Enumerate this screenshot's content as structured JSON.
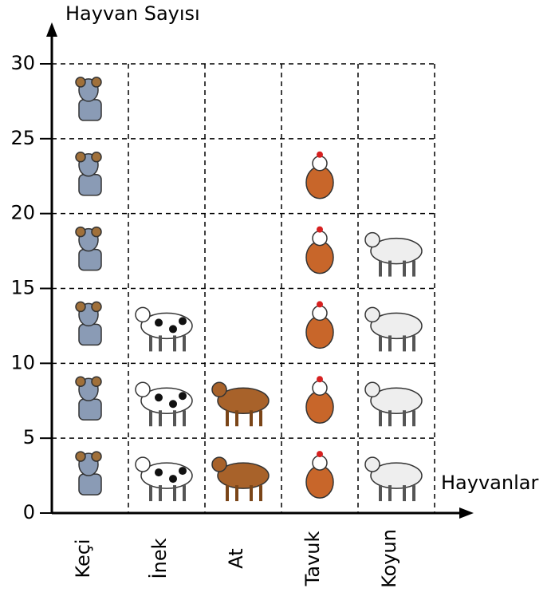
{
  "chart_data": {
    "type": "pictograph",
    "y_label": "Hayvan Sayısı",
    "x_label": "Hayvanlar",
    "categories": [
      "Keçi",
      "İnek",
      "At",
      "Tavuk",
      "Koyun"
    ],
    "values": [
      30,
      15,
      10,
      25,
      20
    ],
    "colors": [
      "#8a9bb5",
      "#ffffff",
      "#a8622a",
      "#c8662a",
      "#eeeeee"
    ],
    "ylim": [
      0,
      30
    ],
    "yticks": [
      0,
      5,
      10,
      15,
      20,
      25,
      30
    ],
    "grid": true
  }
}
